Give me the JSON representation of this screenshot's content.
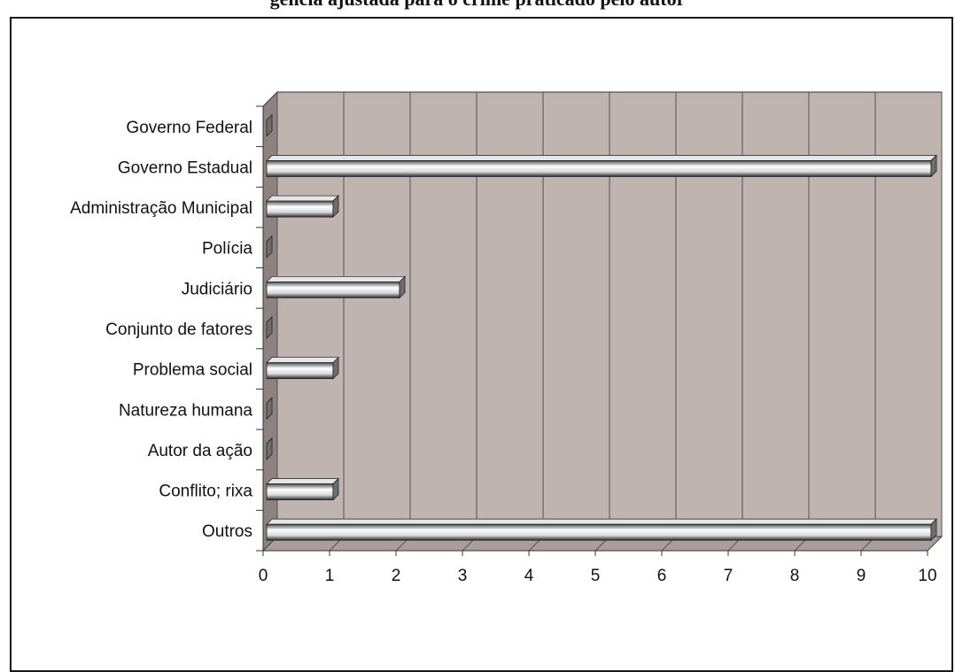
{
  "title": "gência ajustada para o crime praticado pelo autor",
  "colors": {
    "plot_back": "#bfb4b0",
    "plot_side": "#8d8280",
    "plot_floor": "#a99e9b",
    "gridline": "#5a504e",
    "bar_light": "#ffffff",
    "bar_dark": "#2a2a2a",
    "axis": "#333333"
  },
  "chart_data": {
    "type": "bar",
    "orientation": "horizontal",
    "style": "3d",
    "categories": [
      "Governo Federal",
      "Governo Estadual",
      "Administração Municipal",
      "Polícia",
      "Judiciário",
      "Conjunto de fatores",
      "Problema social",
      "Natureza humana",
      "Autor da ação",
      "Conflito; rixa",
      "Outros"
    ],
    "values": [
      0,
      10,
      1,
      0,
      2,
      0,
      1,
      0,
      0,
      1,
      10
    ],
    "xlim": [
      0,
      10
    ],
    "x_ticks": [
      "0",
      "1",
      "2",
      "3",
      "4",
      "5",
      "6",
      "7",
      "8",
      "9",
      "10"
    ],
    "grid": "vertical"
  }
}
